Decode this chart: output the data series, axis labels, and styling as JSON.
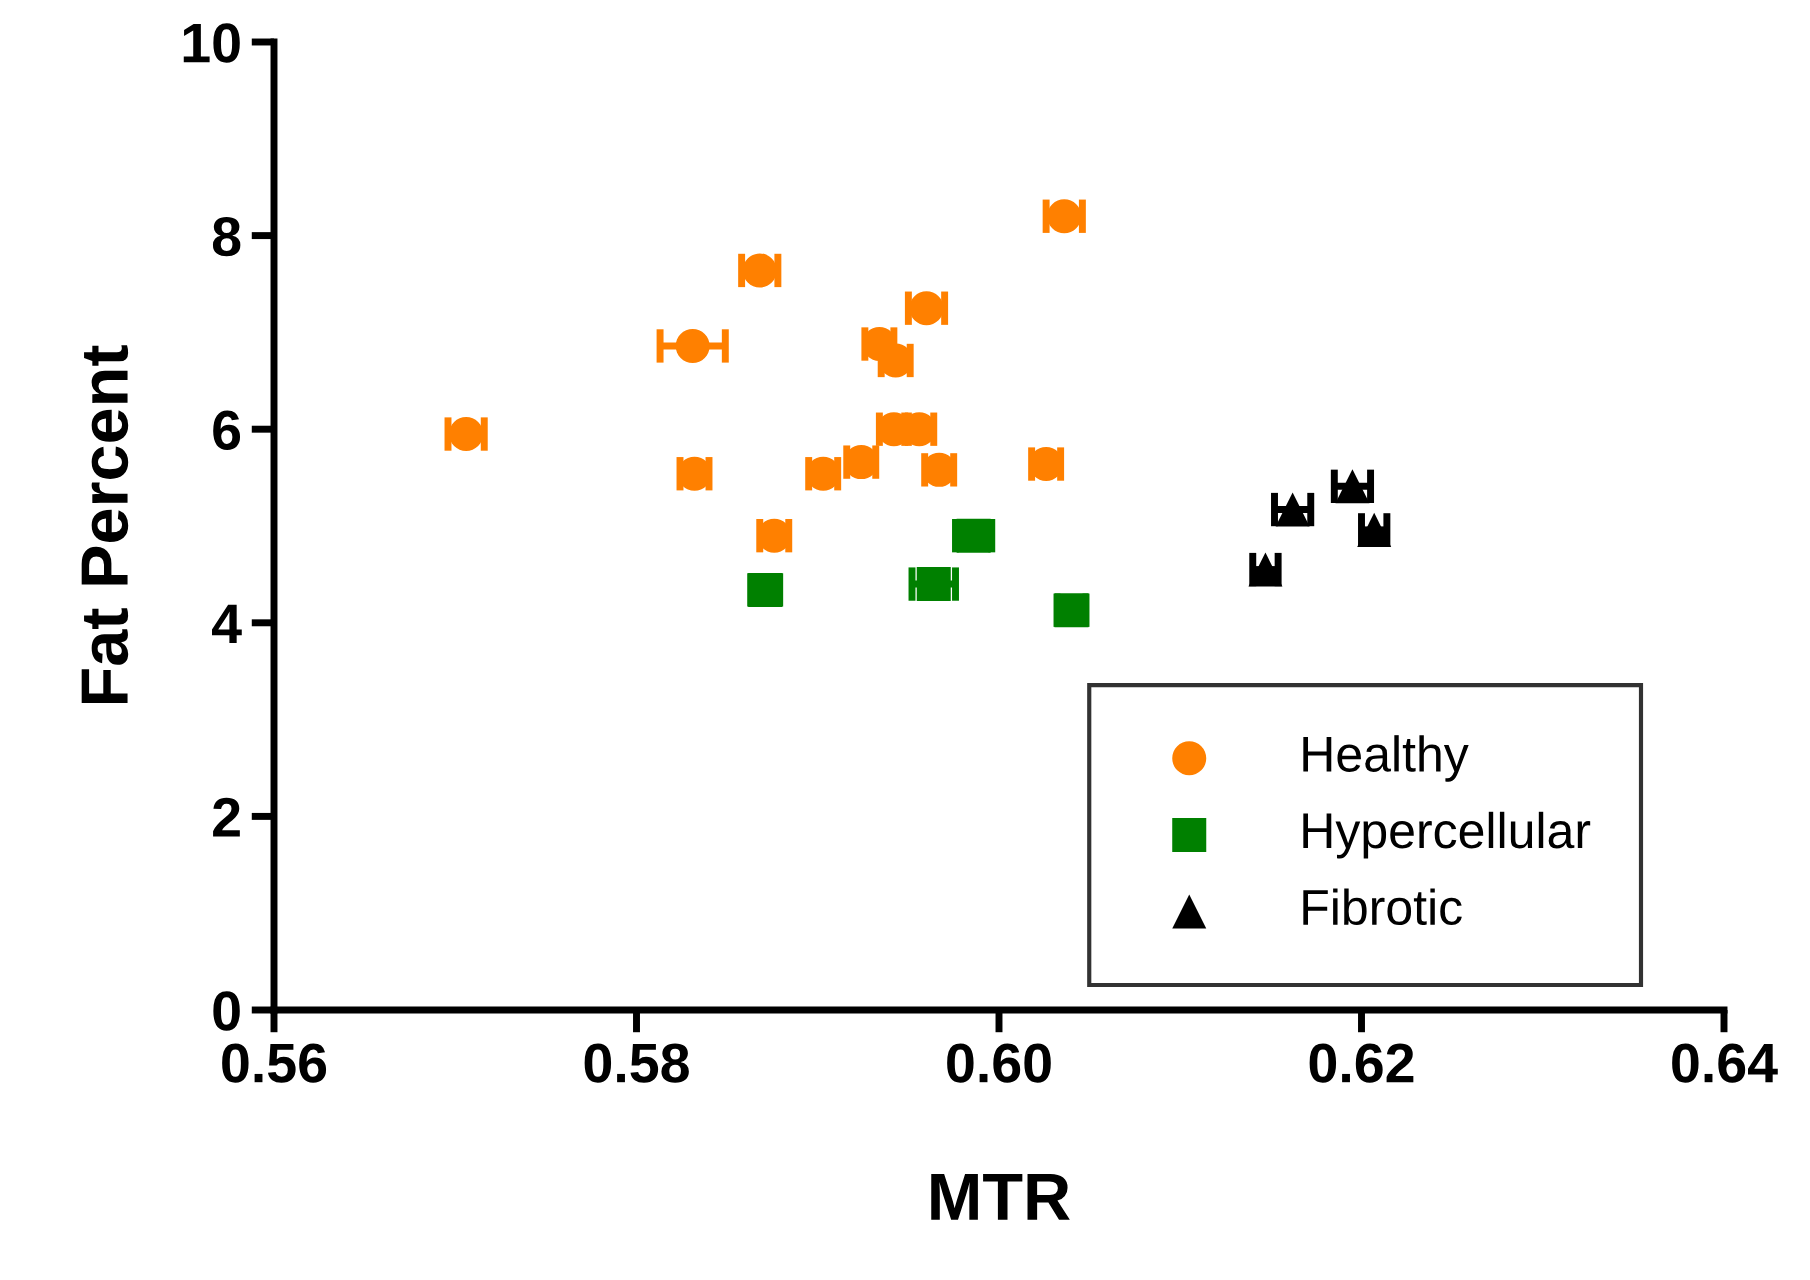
{
  "chart_data": {
    "type": "scatter",
    "xlabel": "MTR",
    "ylabel": "Fat Percent",
    "xlim": [
      0.56,
      0.64
    ],
    "xticks": [
      {
        "value": 0.56,
        "label": "0.56"
      },
      {
        "value": 0.58,
        "label": "0.58"
      },
      {
        "value": 0.6,
        "label": "0.60"
      },
      {
        "value": 0.62,
        "label": "0.62"
      },
      {
        "value": 0.64,
        "label": "0.64"
      }
    ],
    "ylim": [
      0,
      10
    ],
    "yticks": [
      0,
      2,
      4,
      6,
      8,
      10
    ],
    "grid": false,
    "legend": "bottom right",
    "series": [
      {
        "name": "Healthy",
        "color": "#ff8000",
        "marker": "circle",
        "x": [
          0.5706,
          0.5831,
          0.5868,
          0.5832,
          0.5876,
          0.5903,
          0.5924,
          0.5934,
          0.5943,
          0.596,
          0.5942,
          0.5956,
          0.5967,
          0.6026,
          0.6036
        ],
        "values": [
          5.95,
          6.86,
          7.64,
          5.54,
          4.9,
          5.54,
          5.66,
          6.88,
          6.71,
          7.25,
          6.0,
          6.0,
          5.58,
          5.64,
          8.2
        ],
        "xerrors": [
          0.001,
          0.0018,
          0.001,
          0.0008,
          0.0008,
          0.0008,
          0.0008,
          0.0008,
          0.0008,
          0.001,
          0.0008,
          0.0008,
          0.0008,
          0.0008,
          0.001
        ]
      },
      {
        "name": "Hypercellular",
        "color": "#008000",
        "marker": "square",
        "x": [
          0.5871,
          0.5964,
          0.5986,
          0.604
        ],
        "values": [
          4.34,
          4.4,
          4.9,
          4.13
        ],
        "xerrors": [
          0.0008,
          0.0012,
          0.001,
          0.0008
        ]
      },
      {
        "name": "Fibrotic",
        "color": "#000000",
        "marker": "triangle",
        "x": [
          0.6147,
          0.6162,
          0.6195,
          0.6207
        ],
        "values": [
          4.55,
          5.17,
          5.41,
          4.96
        ],
        "xerrors": [
          0.0007,
          0.001,
          0.001,
          0.0007
        ]
      }
    ]
  }
}
